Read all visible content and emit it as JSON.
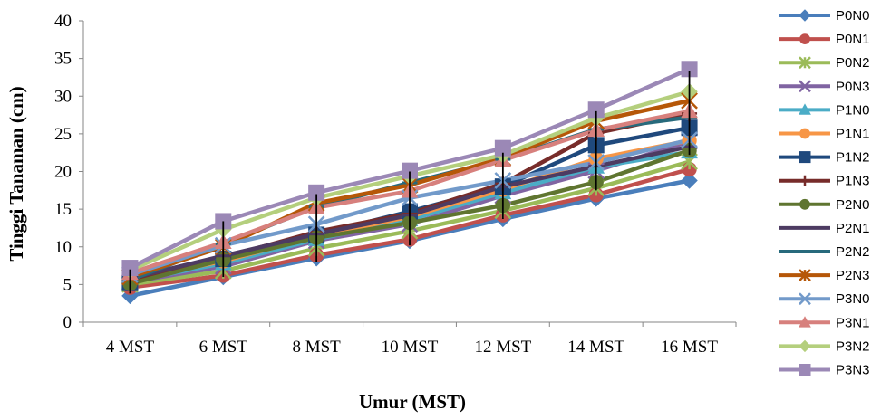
{
  "chart_data": {
    "type": "line",
    "xlabel": "Umur (MST)",
    "ylabel": "Tinggi Tanaman  (cm)",
    "ylim": [
      0,
      40
    ],
    "yticks": [
      "0",
      "5",
      "10",
      "15",
      "20",
      "25",
      "30",
      "35",
      "40"
    ],
    "categories": [
      "4 MST",
      "6 MST",
      "8 MST",
      "10 MST",
      "12 MST",
      "14 MST",
      "16 MST"
    ],
    "legend_position": "right",
    "grid": false,
    "series": [
      {
        "name": "P0N0",
        "color": "#4a7ebb",
        "marker": "diamond",
        "values": [
          3.5,
          6.0,
          8.5,
          10.8,
          13.7,
          16.4,
          18.8
        ]
      },
      {
        "name": "P0N1",
        "color": "#c0504d",
        "marker": "circle",
        "values": [
          4.6,
          6.2,
          8.9,
          11.0,
          14.2,
          16.9,
          20.3
        ]
      },
      {
        "name": "P0N2",
        "color": "#9bbb59",
        "marker": "star",
        "values": [
          5.0,
          6.8,
          9.8,
          12.1,
          14.8,
          17.8,
          21.3
        ]
      },
      {
        "name": "P0N3",
        "color": "#8064a2",
        "marker": "x",
        "values": [
          5.3,
          7.4,
          10.8,
          13.0,
          16.8,
          20.1,
          24.0
        ]
      },
      {
        "name": "P1N0",
        "color": "#4bacc6",
        "marker": "triangle",
        "values": [
          5.4,
          7.8,
          11.0,
          13.6,
          17.2,
          20.6,
          22.6
        ]
      },
      {
        "name": "P1N1",
        "color": "#f79646",
        "marker": "circle",
        "values": [
          5.6,
          8.1,
          11.4,
          14.0,
          17.6,
          21.7,
          24.1
        ]
      },
      {
        "name": "P1N2",
        "color": "#1f497d",
        "marker": "square",
        "values": [
          5.2,
          8.4,
          11.6,
          14.7,
          18.0,
          23.5,
          25.8
        ]
      },
      {
        "name": "P1N3",
        "color": "#772c2a",
        "marker": "plus",
        "values": [
          5.6,
          8.6,
          12.0,
          14.4,
          18.4,
          25.1,
          27.7
        ]
      },
      {
        "name": "P2N0",
        "color": "#5f7530",
        "marker": "circle",
        "values": [
          5.1,
          8.3,
          11.2,
          13.2,
          15.5,
          18.6,
          22.8
        ]
      },
      {
        "name": "P2N1",
        "color": "#4d3b62",
        "marker": "dash",
        "values": [
          5.8,
          8.8,
          11.7,
          14.2,
          18.0,
          20.7,
          23.3
        ]
      },
      {
        "name": "P2N2",
        "color": "#276a7c",
        "marker": "dash",
        "values": [
          5.6,
          10.4,
          15.3,
          18.5,
          21.6,
          25.6,
          27.2
        ]
      },
      {
        "name": "P2N3",
        "color": "#b65708",
        "marker": "star",
        "values": [
          6.0,
          10.0,
          15.8,
          18.2,
          21.8,
          26.7,
          29.4
        ]
      },
      {
        "name": "P3N0",
        "color": "#729aca",
        "marker": "x",
        "values": [
          6.3,
          10.2,
          13.0,
          16.5,
          18.8,
          21.2,
          24.2
        ]
      },
      {
        "name": "P3N1",
        "color": "#d7807d",
        "marker": "triangle",
        "values": [
          6.5,
          10.6,
          15.2,
          17.4,
          21.5,
          25.5,
          28.0
        ]
      },
      {
        "name": "P3N2",
        "color": "#b4cf7d",
        "marker": "diamond",
        "values": [
          6.9,
          12.3,
          16.5,
          19.4,
          22.2,
          27.1,
          30.6
        ]
      },
      {
        "name": "P3N3",
        "color": "#9b88b6",
        "marker": "square",
        "values": [
          7.2,
          13.4,
          17.2,
          20.1,
          23.1,
          28.2,
          33.6
        ]
      }
    ],
    "error_bars": {
      "color": "#000000",
      "low": [
        3.8,
        6.0,
        8.0,
        10.2,
        13.7,
        17.5,
        22.2
      ],
      "high": [
        7.0,
        13.4,
        17.0,
        20.0,
        22.5,
        28.0,
        33.3
      ]
    }
  }
}
